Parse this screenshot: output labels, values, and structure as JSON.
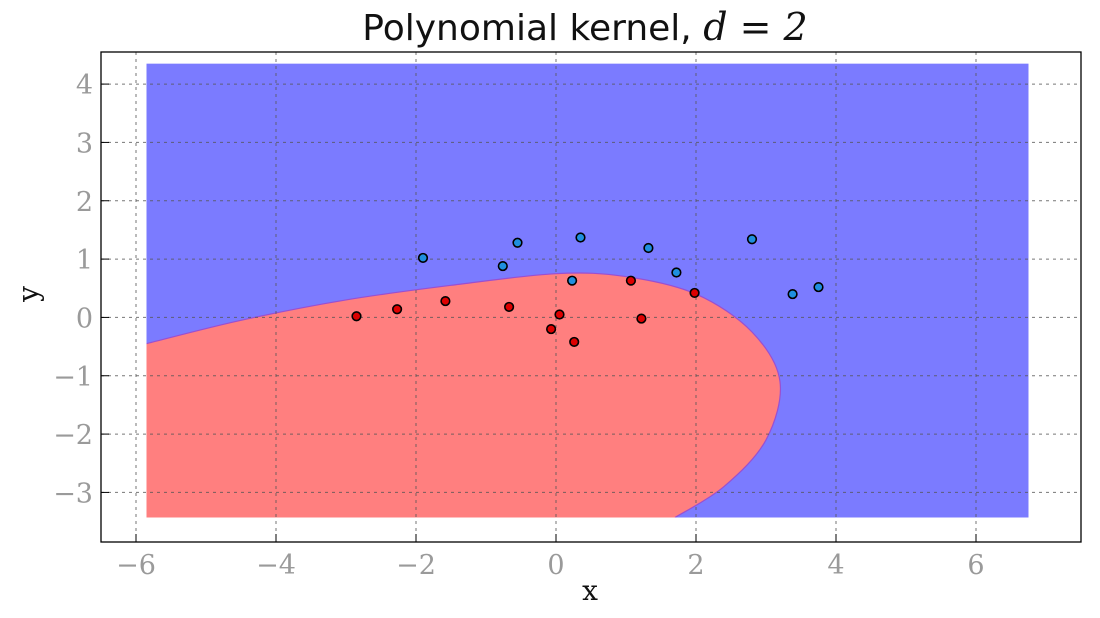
{
  "chart_data": {
    "type": "scatter",
    "title": "Polynomial kernel, ",
    "title_math": "d = 2",
    "xlabel": "x",
    "ylabel": "y",
    "xlim": [
      -6.5,
      7.5
    ],
    "ylim": [
      -3.85,
      4.55
    ],
    "xticks": [
      -6,
      -4,
      -2,
      0,
      2,
      4,
      6
    ],
    "yticks": [
      -3,
      -2,
      -1,
      0,
      1,
      2,
      3,
      4
    ],
    "xtick_labels": [
      "−6",
      "−4",
      "−2",
      "0",
      "2",
      "4",
      "6"
    ],
    "ytick_labels": [
      "−3",
      "−2",
      "−1",
      "0",
      "1",
      "2",
      "3",
      "4"
    ],
    "grid": true,
    "region_extent": {
      "x": [
        -5.85,
        6.75
      ],
      "y": [
        -3.43,
        4.35
      ]
    },
    "regions": {
      "background": "#7b7bff",
      "red_region": "#ff7f7f",
      "points_red": "#dd0000",
      "points_blue": "#1f8fdf"
    },
    "decision_boundary": [
      [
        -5.85,
        -0.45
      ],
      [
        -4.5,
        -0.05
      ],
      [
        -3.0,
        0.3
      ],
      [
        -1.5,
        0.55
      ],
      [
        0.0,
        0.75
      ],
      [
        1.0,
        0.7
      ],
      [
        2.0,
        0.4
      ],
      [
        2.8,
        -0.25
      ],
      [
        3.2,
        -1.1
      ],
      [
        3.0,
        -2.1
      ],
      [
        2.4,
        -2.9
      ],
      [
        1.7,
        -3.43
      ]
    ],
    "series": [
      {
        "color": "red",
        "x": [
          -2.85,
          -2.27,
          -1.58,
          -0.67,
          -0.07,
          0.05,
          0.26,
          1.07,
          1.22,
          1.98
        ],
        "y": [
          0.02,
          0.14,
          0.28,
          0.18,
          -0.2,
          0.05,
          -0.42,
          0.63,
          -0.02,
          0.42
        ]
      },
      {
        "color": "blue",
        "x": [
          -1.9,
          -0.76,
          -0.55,
          0.23,
          0.35,
          1.32,
          1.72,
          2.8,
          3.38,
          3.75
        ],
        "y": [
          1.02,
          0.88,
          1.28,
          0.63,
          1.37,
          1.19,
          0.77,
          1.34,
          0.4,
          0.52
        ]
      }
    ]
  }
}
